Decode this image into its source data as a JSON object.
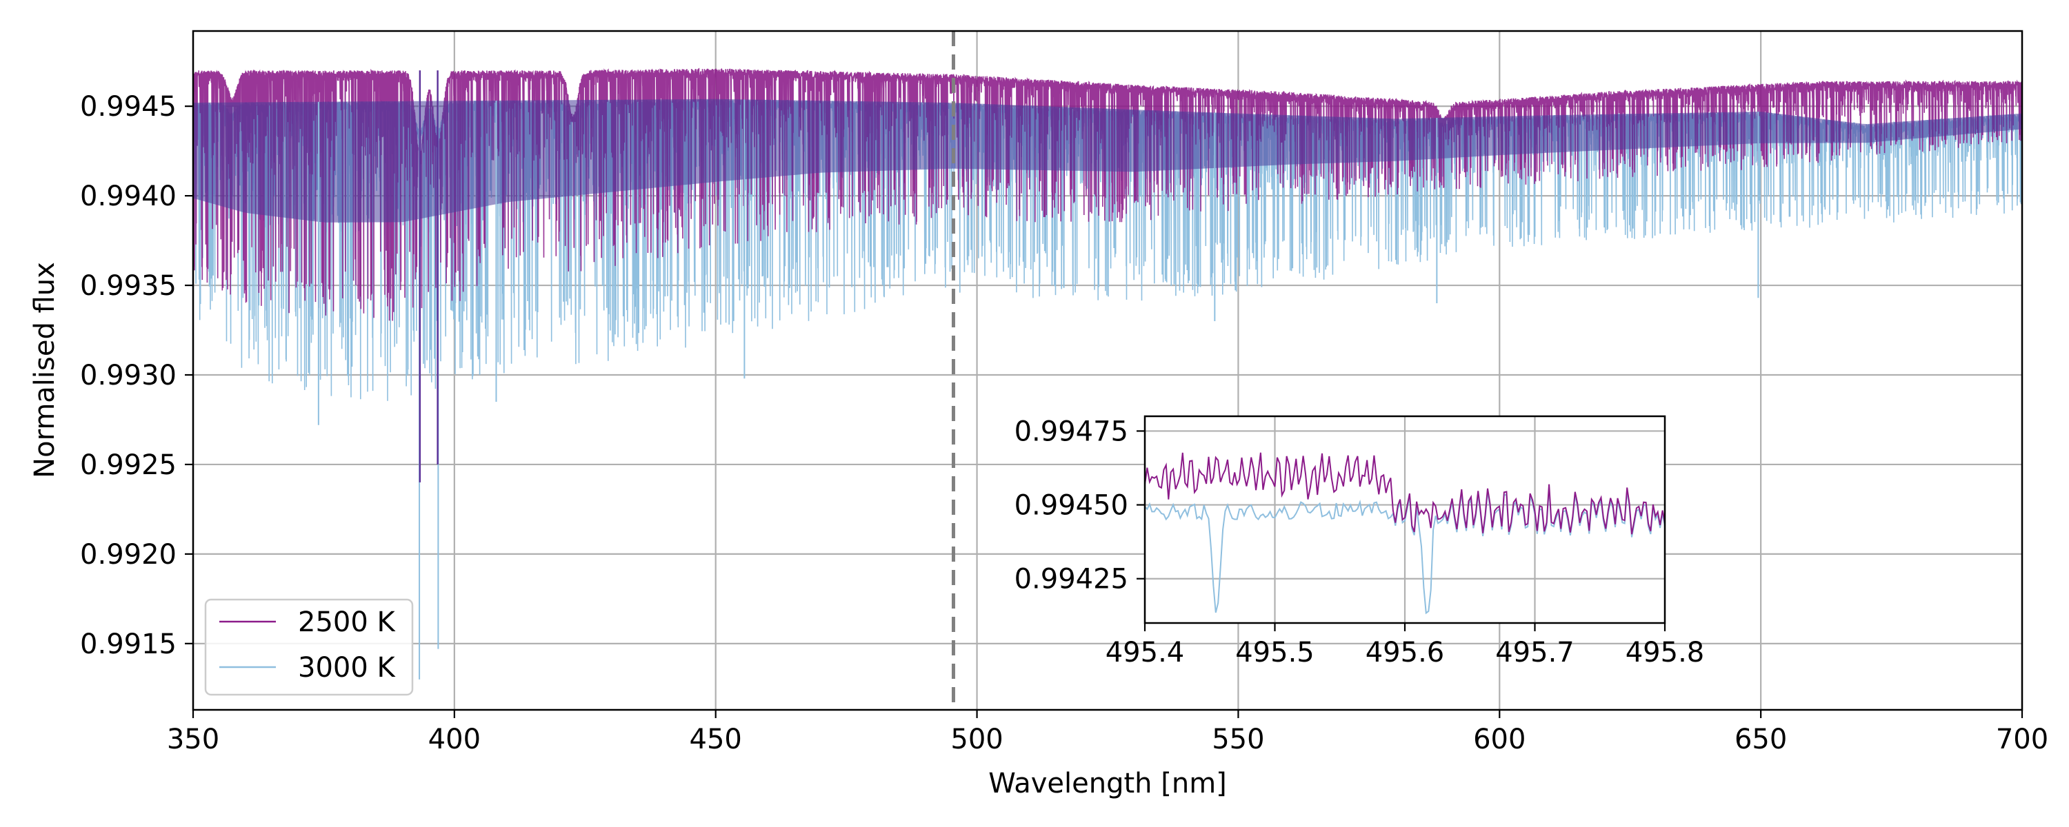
{
  "chart_data": {
    "type": "line",
    "xlabel": "Wavelength [nm]",
    "ylabel": "Normalised flux",
    "xlim": [
      350,
      700
    ],
    "ylim": [
      0.99113,
      0.99492
    ],
    "xticks": [
      350,
      400,
      450,
      500,
      550,
      600,
      650,
      700
    ],
    "yticks": [
      0.9915,
      0.992,
      0.9925,
      0.993,
      0.9935,
      0.994,
      0.9945
    ],
    "ytick_labels": [
      "0.9915",
      "0.9920",
      "0.9925",
      "0.9930",
      "0.9935",
      "0.9940",
      "0.9945"
    ],
    "xtick_labels": [
      "350",
      "400",
      "450",
      "500",
      "550",
      "600",
      "650",
      "700"
    ],
    "grid": true,
    "legend_position": "lower-left",
    "marker_line": {
      "x": 495.5,
      "style": "dashed",
      "color": "#808080"
    },
    "series": [
      {
        "name": "2500 K",
        "color": "#8b1a89",
        "continuum": [
          [
            350,
            0.9947
          ],
          [
            420,
            0.9947
          ],
          [
            450,
            0.99471
          ],
          [
            495,
            0.99468
          ],
          [
            530,
            0.99462
          ],
          [
            560,
            0.99458
          ],
          [
            590,
            0.99452
          ],
          [
            620,
            0.99458
          ],
          [
            660,
            0.99464
          ],
          [
            700,
            0.99464
          ]
        ],
        "lower_envelope": [
          [
            350,
            0.99355
          ],
          [
            360,
            0.9934
          ],
          [
            375,
            0.9933
          ],
          [
            390,
            0.9933
          ],
          [
            410,
            0.9935
          ],
          [
            440,
            0.99365
          ],
          [
            470,
            0.9938
          ],
          [
            495,
            0.99385
          ],
          [
            530,
            0.99385
          ],
          [
            560,
            0.99395
          ],
          [
            600,
            0.99405
          ],
          [
            650,
            0.99415
          ],
          [
            700,
            0.9943
          ]
        ],
        "broad_absorptions": [
          {
            "center": 357.5,
            "depth": 0.00015
          },
          {
            "center": 393.4,
            "depth": 0.00045
          },
          {
            "center": 396.9,
            "depth": 0.0004
          },
          {
            "center": 422.7,
            "depth": 0.00025
          },
          {
            "center": 589.3,
            "depth": 8e-05
          }
        ],
        "deep_lines": [
          {
            "x": 393.4,
            "y": 0.9924
          },
          {
            "x": 396.8,
            "y": 0.9925
          }
        ]
      },
      {
        "name": "3000 K",
        "color": "#8fbfdf",
        "continuum": [
          [
            350,
            0.99452
          ],
          [
            400,
            0.99453
          ],
          [
            450,
            0.99454
          ],
          [
            495,
            0.99452
          ],
          [
            540,
            0.99447
          ],
          [
            580,
            0.99443
          ],
          [
            610,
            0.99445
          ],
          [
            650,
            0.99447
          ],
          [
            670,
            0.9944
          ],
          [
            700,
            0.99446
          ]
        ],
        "lower_envelope": [
          [
            350,
            0.99335
          ],
          [
            360,
            0.993
          ],
          [
            375,
            0.99285
          ],
          [
            390,
            0.99285
          ],
          [
            410,
            0.993
          ],
          [
            440,
            0.9931
          ],
          [
            470,
            0.9933
          ],
          [
            495,
            0.99345
          ],
          [
            530,
            0.9934
          ],
          [
            550,
            0.99345
          ],
          [
            600,
            0.9937
          ],
          [
            650,
            0.9938
          ],
          [
            700,
            0.9939
          ]
        ],
        "deep_lines": [
          {
            "x": 393.3,
            "y": 0.9913
          },
          {
            "x": 396.9,
            "y": 0.99147
          },
          {
            "x": 374.0,
            "y": 0.99272
          },
          {
            "x": 408.0,
            "y": 0.99285
          },
          {
            "x": 455.5,
            "y": 0.99298
          },
          {
            "x": 545.5,
            "y": 0.9933
          },
          {
            "x": 588.0,
            "y": 0.9934
          },
          {
            "x": 649.5,
            "y": 0.99343
          }
        ]
      }
    ],
    "inset": {
      "xlim": [
        495.4,
        495.8
      ],
      "ylim": [
        0.9941,
        0.9948
      ],
      "xticks": [
        495.4,
        495.5,
        495.6,
        495.7,
        495.8
      ],
      "xtick_labels": [
        "495.4",
        "495.5",
        "495.6",
        "495.7",
        "495.8"
      ],
      "yticks": [
        0.99425,
        0.9945,
        0.99475
      ],
      "ytick_labels": [
        "0.99425",
        "0.99450",
        "0.99475"
      ],
      "grid": true,
      "series_2500K": {
        "upper_level": 0.99462,
        "step_x": 495.59,
        "lower_level_after": 0.9944,
        "amplitude": 0.0001
      },
      "series_3000K": {
        "level": 0.99448,
        "dips": [
          {
            "x": 495.455,
            "y": 0.99415
          },
          {
            "x": 495.617,
            "y": 0.99413
          }
        ]
      }
    }
  }
}
